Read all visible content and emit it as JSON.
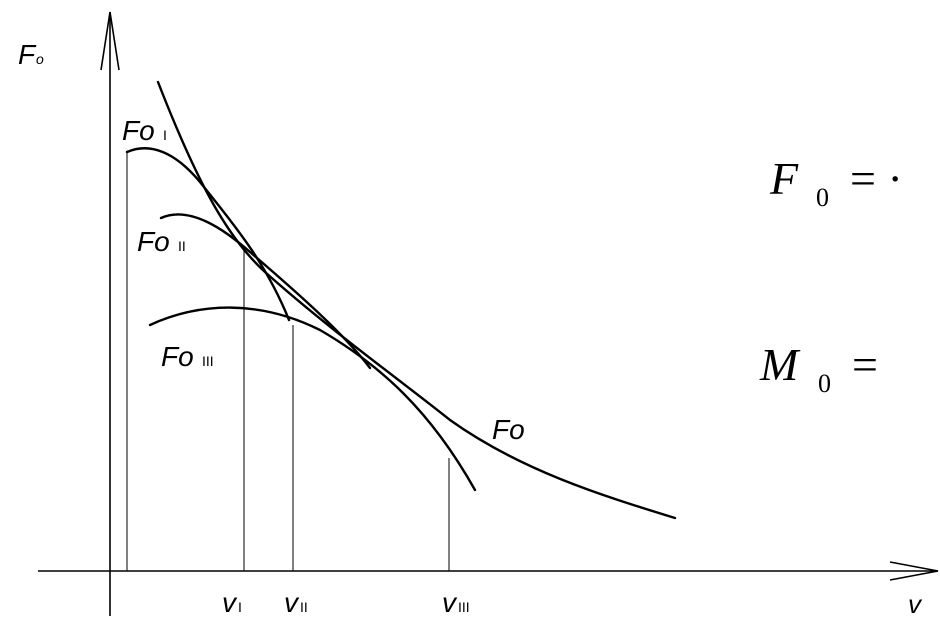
{
  "axes": {
    "y_label": "F",
    "y_label_sub": "o",
    "x_label": "v"
  },
  "curves": {
    "fo_I": {
      "main": "Fo",
      "sub": "I"
    },
    "fo_II": {
      "main": "Fo",
      "sub": "II"
    },
    "fo_III": {
      "main": "Fo",
      "sub": "III"
    },
    "fo": {
      "main": "Fo"
    }
  },
  "x_ticks": {
    "v_I": {
      "main": "v",
      "sub": "I"
    },
    "v_II": {
      "main": "v",
      "sub": "II"
    },
    "v_III": {
      "main": "v",
      "sub": "III"
    }
  },
  "formulas": {
    "f0": {
      "main": "F",
      "sub": "0",
      "rest": "= ·"
    },
    "m0": {
      "main": "M",
      "sub": "0",
      "rest": "="
    }
  }
}
